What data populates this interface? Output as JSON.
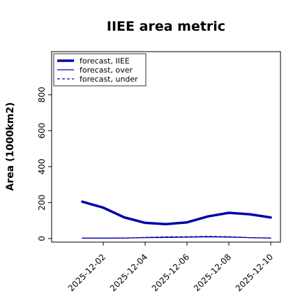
{
  "chart_data": {
    "type": "line",
    "title": "IIEE area metric",
    "xlabel": "",
    "ylabel": "Area (1000km2)",
    "x": [
      "2025-12-01",
      "2025-12-02",
      "2025-12-03",
      "2025-12-04",
      "2025-12-05",
      "2025-12-06",
      "2025-12-07",
      "2025-12-08",
      "2025-12-09",
      "2025-12-10"
    ],
    "x_ticks": [
      "2025-12-02",
      "2025-12-04",
      "2025-12-06",
      "2025-12-08",
      "2025-12-10"
    ],
    "x_tick_colors": [
      "#228B22",
      "#000000",
      "#000000",
      "#000000",
      "#000000"
    ],
    "y_ticks": [
      0,
      200,
      400,
      600,
      800
    ],
    "ylim": [
      -20,
      1040
    ],
    "xlim": [
      "2025-11-30",
      "2025-12-10"
    ],
    "grid": false,
    "legend_position": "top-left",
    "series": [
      {
        "name": "forecast, IIEE",
        "color": "#0000aa",
        "style": "solid-thick",
        "values": [
          205,
          172,
          118,
          87,
          80,
          90,
          123,
          143,
          135,
          117
        ]
      },
      {
        "name": "forecast, over",
        "color": "#0000aa",
        "style": "solid",
        "values": [
          2,
          2,
          3,
          5,
          6,
          7,
          9,
          8,
          5,
          2
        ]
      },
      {
        "name": "forecast, under",
        "color": "#0000aa",
        "style": "dashed",
        "values": [
          2,
          2,
          2,
          6,
          9,
          10,
          12,
          10,
          5,
          3
        ]
      }
    ]
  }
}
